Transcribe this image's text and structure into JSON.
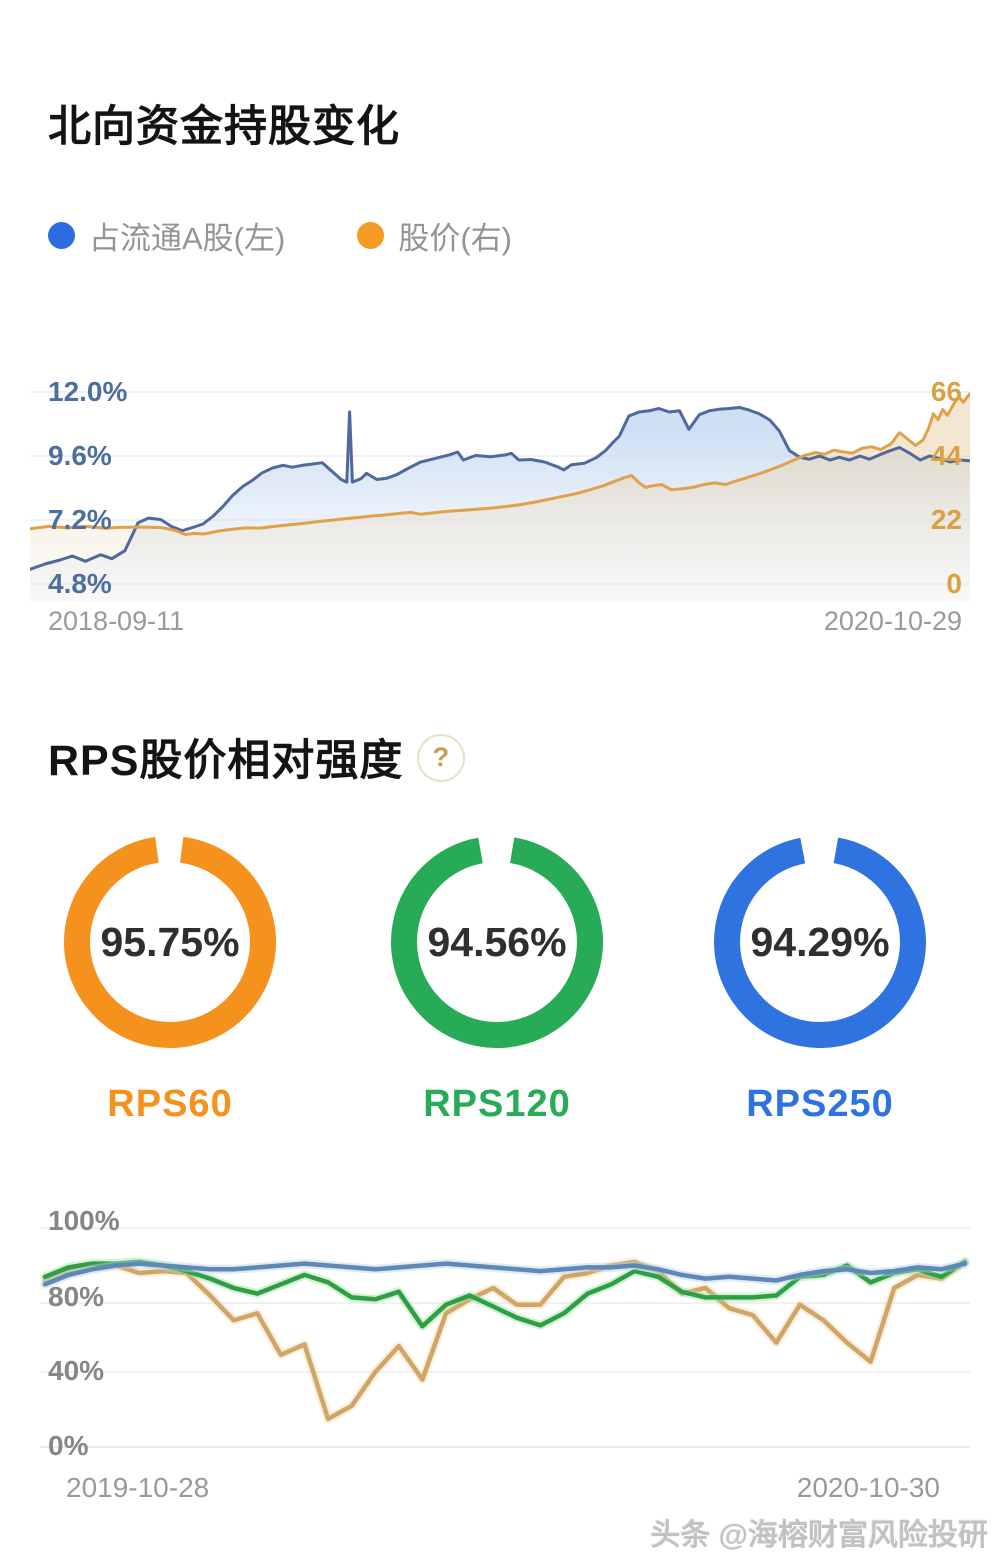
{
  "page": {
    "background": "#ffffff",
    "watermark": "头条 @海榕财富风险投研"
  },
  "holdings_section": {
    "title": "北向资金持股变化",
    "legend": [
      {
        "label": "占流通A股(左)",
        "dot_color": "#2b6ce0"
      },
      {
        "label": "股价(右)",
        "dot_color": "#f59a23"
      }
    ],
    "date_start": "2018-09-11",
    "date_end": "2020-10-29",
    "left_axis_color": "#4e6f9e",
    "right_axis_color": "#dc9f42"
  },
  "rps_section": {
    "title": "RPS股价相对强度",
    "help_icon": "?",
    "donuts": [
      {
        "label": "RPS60",
        "value": "95.75%",
        "pct": 95.75,
        "color": "#f5921e"
      },
      {
        "label": "RPS120",
        "value": "94.56%",
        "pct": 94.56,
        "color": "#27ab56"
      },
      {
        "label": "RPS250",
        "value": "94.29%",
        "pct": 94.29,
        "color": "#2e73e0"
      }
    ],
    "date_start": "2019-10-28",
    "date_end": "2020-10-30",
    "axis_color": "#868686"
  },
  "chart_data": [
    {
      "type": "line",
      "title": "北向资金持股变化",
      "x_range": [
        "2018-09-11",
        "2020-10-29"
      ],
      "grid": true,
      "legend_position": "top",
      "left_axis": {
        "ticks": [
          "12.0%",
          "9.6%",
          "7.2%",
          "4.8%"
        ],
        "min": 4.8,
        "max": 12.0
      },
      "right_axis": {
        "ticks": [
          "66",
          "44",
          "22",
          "0"
        ],
        "min": 0,
        "max": 66
      },
      "series": [
        {
          "name": "占流通A股(左)",
          "axis": "left",
          "color": "#4f689e",
          "fill": "#bcd4f0",
          "x": [
            0.0,
            0.016,
            0.032,
            0.045,
            0.059,
            0.075,
            0.087,
            0.101,
            0.115,
            0.126,
            0.139,
            0.151,
            0.162,
            0.173,
            0.184,
            0.195,
            0.205,
            0.215,
            0.226,
            0.237,
            0.247,
            0.258,
            0.269,
            0.279,
            0.29,
            0.301,
            0.311,
            0.322,
            0.331,
            0.337,
            0.34,
            0.343,
            0.352,
            0.358,
            0.369,
            0.38,
            0.39,
            0.403,
            0.416,
            0.43,
            0.446,
            0.455,
            0.461,
            0.474,
            0.49,
            0.506,
            0.512,
            0.52,
            0.533,
            0.547,
            0.561,
            0.568,
            0.576,
            0.59,
            0.603,
            0.613,
            0.62,
            0.627,
            0.637,
            0.648,
            0.659,
            0.669,
            0.68,
            0.691,
            0.701,
            0.712,
            0.723,
            0.733,
            0.744,
            0.755,
            0.765,
            0.776,
            0.787,
            0.797,
            0.808,
            0.819,
            0.829,
            0.84,
            0.851,
            0.861,
            0.872,
            0.883,
            0.893,
            0.904,
            0.915,
            0.925,
            0.936,
            0.947,
            0.957,
            0.968,
            0.979,
            0.989,
            1.0
          ],
          "values": [
            5.35,
            5.55,
            5.7,
            5.85,
            5.65,
            5.9,
            5.75,
            6.05,
            7.1,
            7.27,
            7.22,
            6.95,
            6.8,
            6.92,
            7.05,
            7.35,
            7.7,
            8.1,
            8.45,
            8.7,
            8.97,
            9.15,
            9.25,
            9.18,
            9.25,
            9.3,
            9.35,
            9.0,
            8.72,
            8.62,
            11.25,
            8.62,
            8.75,
            8.95,
            8.72,
            8.77,
            8.9,
            9.15,
            9.38,
            9.5,
            9.64,
            9.75,
            9.45,
            9.62,
            9.57,
            9.64,
            9.7,
            9.45,
            9.47,
            9.38,
            9.2,
            9.08,
            9.27,
            9.33,
            9.55,
            9.83,
            10.1,
            10.35,
            11.1,
            11.25,
            11.3,
            11.38,
            11.25,
            11.3,
            10.6,
            11.15,
            11.3,
            11.35,
            11.38,
            11.42,
            11.32,
            11.18,
            10.95,
            10.55,
            9.8,
            9.55,
            9.48,
            9.6,
            9.45,
            9.55,
            9.45,
            9.6,
            9.48,
            9.65,
            9.8,
            9.92,
            9.7,
            9.45,
            9.6,
            9.5,
            9.38,
            9.45,
            9.42
          ]
        },
        {
          "name": "股价(右)",
          "axis": "right",
          "color": "#e0a14b",
          "fill": "#ead3ab",
          "x": [
            0.0,
            0.02,
            0.04,
            0.06,
            0.08,
            0.1,
            0.12,
            0.14,
            0.155,
            0.165,
            0.175,
            0.185,
            0.2,
            0.215,
            0.23,
            0.245,
            0.26,
            0.275,
            0.29,
            0.305,
            0.32,
            0.335,
            0.35,
            0.365,
            0.38,
            0.395,
            0.405,
            0.415,
            0.43,
            0.445,
            0.46,
            0.475,
            0.49,
            0.505,
            0.52,
            0.535,
            0.55,
            0.565,
            0.58,
            0.595,
            0.61,
            0.622,
            0.632,
            0.64,
            0.648,
            0.655,
            0.663,
            0.672,
            0.682,
            0.695,
            0.705,
            0.717,
            0.728,
            0.74,
            0.75,
            0.762,
            0.775,
            0.787,
            0.8,
            0.812,
            0.824,
            0.836,
            0.845,
            0.855,
            0.865,
            0.875,
            0.885,
            0.895,
            0.905,
            0.916,
            0.925,
            0.933,
            0.942,
            0.95,
            0.956,
            0.961,
            0.966,
            0.971,
            0.976,
            0.982,
            0.988,
            0.993,
            1.0
          ],
          "values": [
            19.0,
            19.8,
            19.3,
            19.8,
            19.2,
            19.5,
            19.6,
            19.4,
            18.4,
            17.0,
            17.4,
            17.2,
            18.2,
            18.8,
            19.3,
            19.2,
            19.8,
            20.3,
            20.8,
            21.4,
            21.9,
            22.4,
            22.9,
            23.4,
            23.8,
            24.3,
            24.6,
            24.0,
            24.5,
            25.0,
            25.3,
            25.7,
            26.1,
            26.6,
            27.2,
            28.0,
            29.0,
            30.0,
            31.0,
            32.3,
            33.8,
            35.3,
            36.5,
            37.3,
            34.8,
            33.2,
            33.8,
            34.2,
            32.4,
            32.8,
            33.2,
            34.2,
            34.8,
            34.2,
            35.3,
            36.5,
            37.8,
            39.2,
            40.8,
            42.5,
            44.2,
            45.2,
            44.6,
            46.0,
            45.4,
            45.0,
            46.6,
            47.2,
            46.2,
            48.2,
            52.0,
            50.0,
            47.6,
            49.5,
            53.5,
            58.5,
            56.5,
            60.0,
            58.0,
            61.5,
            64.5,
            62.5,
            65.5
          ]
        }
      ]
    },
    {
      "type": "pie",
      "variant": "donut",
      "items": [
        {
          "label": "RPS60",
          "value": 95.75,
          "color": "#f5921e"
        },
        {
          "label": "RPS120",
          "value": 94.56,
          "color": "#27ab56"
        },
        {
          "label": "RPS250",
          "value": 94.29,
          "color": "#2e73e0"
        }
      ]
    },
    {
      "type": "line",
      "x_range": [
        "2019-10-28",
        "2020-10-30"
      ],
      "grid": true,
      "y_ticks": [
        "100%",
        "80%",
        "40%",
        "0%"
      ],
      "y_tick_values": [
        100,
        80,
        40,
        0
      ],
      "series": [
        {
          "name": "RPS60",
          "color": "#d2a566",
          "halo": "#efdcb8",
          "values": [
            86,
            88.5,
            89.5,
            90,
            88,
            88.5,
            88,
            82,
            70,
            74,
            50,
            56,
            15,
            22,
            40,
            55,
            36,
            74,
            81,
            84,
            79,
            79,
            87,
            88,
            90,
            91,
            88.5,
            82.5,
            84,
            77,
            73,
            57,
            79,
            70,
            57,
            46,
            84,
            87.5,
            86.5,
            91
          ]
        },
        {
          "name": "RPS120",
          "color": "#2f9e44",
          "halo": "#9ce2a5",
          "values": [
            87,
            89.5,
            90.5,
            90.5,
            91,
            90,
            88.5,
            86.5,
            84,
            82.5,
            85,
            87.5,
            85.5,
            81.5,
            81,
            83,
            66.5,
            79,
            82,
            78,
            71.5,
            67,
            74,
            82.5,
            85,
            88.5,
            87,
            83,
            81.5,
            81.5,
            81.5,
            82,
            87,
            87.5,
            90,
            85.5,
            88,
            89,
            87,
            91
          ]
        },
        {
          "name": "RPS250",
          "color": "#5e88b6",
          "halo": "#b9d2e6",
          "values": [
            85,
            87.5,
            89,
            90,
            90.5,
            90,
            89.5,
            89,
            89,
            89.5,
            90,
            90.5,
            90,
            89.5,
            89,
            89.5,
            90,
            90.5,
            90,
            89.5,
            89,
            88.5,
            89,
            89.5,
            89.5,
            90,
            89,
            87.5,
            86.5,
            87,
            86.5,
            86,
            87.5,
            88.5,
            89,
            88,
            88.5,
            89.5,
            89,
            90.5
          ]
        }
      ]
    }
  ]
}
